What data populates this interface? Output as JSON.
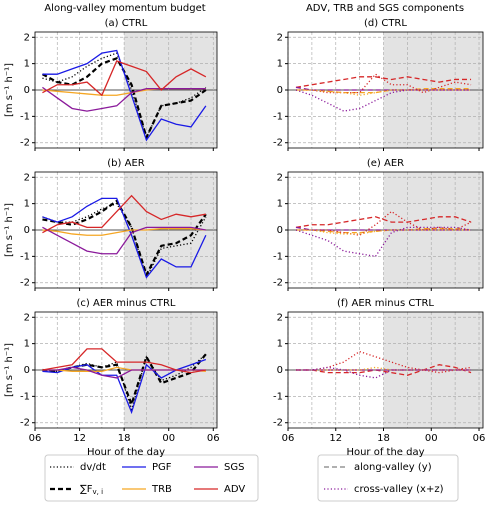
{
  "headers": [
    "Along-valley momentum budget",
    "ADV, TRB and SGS components"
  ],
  "legend_right": [
    {
      "name": "along-valley (y)",
      "color": "#808080",
      "style": "dashed"
    },
    {
      "name": "cross-valley (x+z)",
      "color": "#8b1a9b",
      "style": "dotted"
    }
  ],
  "chart_data": [
    {
      "type": "line",
      "title": "(a) CTRL",
      "ylabel": "[m s⁻¹ h⁻¹]",
      "x": [
        7,
        9,
        11,
        13,
        15,
        17,
        19,
        21,
        23,
        25,
        27,
        29
      ],
      "xlim": [
        6,
        30.5
      ],
      "ylim": [
        -2.2,
        2.2
      ],
      "xticks": [
        6,
        12,
        18,
        24,
        30
      ],
      "minor_xticks": [
        9,
        15,
        21,
        27
      ],
      "yticks": [
        -2,
        -1,
        0,
        1,
        2
      ],
      "grid": true,
      "shade": [
        18,
        30.5
      ],
      "series": [
        {
          "name": "dv/dt",
          "color": "#000000",
          "style": "dotted",
          "values": [
            0.45,
            0.3,
            0.5,
            0.9,
            1.2,
            1.4,
            0.0,
            -1.8,
            -0.6,
            -0.5,
            -0.3,
            0.1
          ]
        },
        {
          "name": "∑F",
          "subscript": "v, i",
          "color": "#000000",
          "style": "dashed",
          "linewidth": 2.2,
          "values": [
            0.6,
            0.3,
            0.2,
            0.5,
            1.0,
            1.2,
            0.2,
            -1.8,
            -0.6,
            -0.5,
            -0.4,
            0.0
          ]
        },
        {
          "name": "PGF",
          "color": "#1a1ae6",
          "style": "solid",
          "values": [
            0.6,
            0.6,
            0.8,
            1.0,
            1.4,
            1.5,
            -0.2,
            -1.9,
            -1.1,
            -1.3,
            -1.4,
            -0.6
          ]
        },
        {
          "name": "TRB",
          "color": "#f5a623",
          "style": "solid",
          "values": [
            0.0,
            -0.05,
            -0.1,
            -0.15,
            -0.2,
            -0.2,
            -0.1,
            0,
            0.05,
            0.05,
            0.05,
            0.05
          ]
        },
        {
          "name": "SGS",
          "color": "#8b1a9b",
          "style": "solid",
          "values": [
            0.1,
            -0.3,
            -0.7,
            -0.8,
            -0.7,
            -0.6,
            -0.1,
            0.05,
            0.05,
            0.05,
            0.05,
            0.05
          ]
        },
        {
          "name": "ADV",
          "color": "#d62728",
          "style": "solid",
          "values": [
            -0.1,
            0.2,
            0.2,
            0.3,
            -0.2,
            1.1,
            0.9,
            0.7,
            0.0,
            0.5,
            0.8,
            0.5
          ]
        }
      ]
    },
    {
      "type": "line",
      "title": "(d) CTRL",
      "x": [
        7,
        9,
        11,
        13,
        15,
        17,
        19,
        21,
        23,
        25,
        27,
        29
      ],
      "xlim": [
        6,
        30.5
      ],
      "ylim": [
        -2.2,
        2.2
      ],
      "xticks": [
        6,
        12,
        18,
        24,
        30
      ],
      "minor_xticks": [
        9,
        15,
        21,
        27
      ],
      "yticks": [
        -2,
        -1,
        0,
        1,
        2
      ],
      "grid": true,
      "shade": [
        18,
        30.5
      ],
      "series": [
        {
          "color": "#d62728",
          "style": "dashed",
          "values": [
            0.1,
            0.2,
            0.3,
            0.4,
            0.5,
            0.5,
            0.4,
            0.5,
            0.4,
            0.3,
            0.4,
            0.4
          ]
        },
        {
          "color": "#f5a623",
          "style": "dashed",
          "values": [
            0,
            0,
            -0.05,
            -0.1,
            -0.1,
            -0.1,
            0,
            0,
            0.05,
            0.05,
            0.05,
            0.05
          ]
        },
        {
          "color": "#8b1a9b",
          "style": "dashed",
          "values": [
            0.1,
            0,
            0,
            0,
            0,
            0,
            0,
            0,
            0,
            0,
            0,
            0
          ]
        },
        {
          "color": "#d62728",
          "style": "dotted",
          "values": [
            0,
            0,
            -0.1,
            -0.1,
            -0.1,
            0.6,
            0.2,
            0.2,
            -0.1,
            0.1,
            0.3,
            0.2
          ]
        },
        {
          "color": "#f5a623",
          "style": "dotted",
          "values": [
            0,
            0,
            -0.05,
            -0.1,
            -0.2,
            -0.1,
            0,
            0,
            0,
            0,
            0,
            0
          ]
        },
        {
          "color": "#8b1a9b",
          "style": "dotted",
          "values": [
            0,
            -0.2,
            -0.5,
            -0.8,
            -0.7,
            -0.4,
            -0.1,
            0,
            0,
            0,
            0,
            0
          ]
        }
      ]
    },
    {
      "type": "line",
      "title": "(b) AER",
      "ylabel": "[m s⁻¹ h⁻¹]",
      "x": [
        7,
        9,
        11,
        13,
        15,
        17,
        19,
        21,
        23,
        25,
        27,
        29
      ],
      "xlim": [
        6,
        30.5
      ],
      "ylim": [
        -2.2,
        2.2
      ],
      "xticks": [
        6,
        12,
        18,
        24,
        30
      ],
      "minor_xticks": [
        9,
        15,
        21,
        27
      ],
      "yticks": [
        -2,
        -1,
        0,
        1,
        2
      ],
      "grid": true,
      "shade": [
        18,
        30.5
      ],
      "series": [
        {
          "color": "#000000",
          "style": "dotted",
          "values": [
            0.5,
            0.3,
            0.3,
            0.5,
            0.8,
            1.0,
            0.1,
            -1.8,
            -0.7,
            -0.6,
            -0.5,
            0.5
          ]
        },
        {
          "color": "#000000",
          "style": "dashed",
          "linewidth": 2.2,
          "values": [
            0.4,
            0.3,
            0.2,
            0.4,
            0.7,
            1.1,
            0.1,
            -1.7,
            -0.6,
            -0.5,
            -0.2,
            0.6
          ]
        },
        {
          "color": "#1a1ae6",
          "style": "solid",
          "values": [
            0.5,
            0.3,
            0.5,
            0.9,
            1.2,
            1.2,
            -0.2,
            -1.8,
            -1.1,
            -1.4,
            -1.4,
            -0.2
          ]
        },
        {
          "color": "#f5a623",
          "style": "solid",
          "values": [
            0,
            -0.05,
            -0.15,
            -0.2,
            -0.2,
            -0.1,
            0,
            0,
            0.05,
            0.05,
            0.05,
            0
          ]
        },
        {
          "color": "#8b1a9b",
          "style": "solid",
          "values": [
            0.1,
            -0.2,
            -0.5,
            -0.8,
            -0.9,
            -0.9,
            -0.1,
            0.1,
            0.1,
            0.1,
            0.1,
            0
          ]
        },
        {
          "color": "#d62728",
          "style": "solid",
          "values": [
            -0.1,
            0.2,
            0.3,
            0.1,
            0.1,
            0.7,
            1.3,
            0.7,
            0.4,
            0.6,
            0.5,
            0.6
          ]
        }
      ]
    },
    {
      "type": "line",
      "title": "(e) AER",
      "x": [
        7,
        9,
        11,
        13,
        15,
        17,
        19,
        21,
        23,
        25,
        27,
        29
      ],
      "xlim": [
        6,
        30.5
      ],
      "ylim": [
        -2.2,
        2.2
      ],
      "xticks": [
        6,
        12,
        18,
        24,
        30
      ],
      "minor_xticks": [
        9,
        15,
        21,
        27
      ],
      "yticks": [
        -2,
        -1,
        0,
        1,
        2
      ],
      "grid": true,
      "shade": [
        18,
        30.5
      ],
      "series": [
        {
          "color": "#d62728",
          "style": "dashed",
          "values": [
            0.1,
            0.2,
            0.2,
            0.3,
            0.4,
            0.5,
            0.3,
            0.3,
            0.4,
            0.5,
            0.5,
            0.3
          ]
        },
        {
          "color": "#f5a623",
          "style": "dashed",
          "values": [
            0,
            0,
            -0.05,
            -0.1,
            -0.1,
            -0.05,
            0,
            0,
            0.05,
            0.05,
            0.05,
            0
          ]
        },
        {
          "color": "#8b1a9b",
          "style": "dashed",
          "values": [
            0.1,
            0,
            0,
            0,
            0,
            0,
            0,
            0,
            0,
            0,
            0,
            0
          ]
        },
        {
          "color": "#d62728",
          "style": "dotted",
          "values": [
            0,
            0,
            0,
            -0.1,
            -0.2,
            0.2,
            0.7,
            0.3,
            0,
            0.1,
            0,
            0.3
          ]
        },
        {
          "color": "#f5a623",
          "style": "dotted",
          "values": [
            0,
            0,
            -0.1,
            -0.15,
            -0.15,
            -0.05,
            0,
            0,
            0,
            0,
            0,
            0
          ]
        },
        {
          "color": "#8b1a9b",
          "style": "dotted",
          "values": [
            0,
            -0.2,
            -0.4,
            -0.8,
            -0.9,
            -1.0,
            -0.1,
            0.1,
            0.1,
            0.1,
            0.1,
            0
          ]
        }
      ]
    },
    {
      "type": "line",
      "title": "(c) AER minus CTRL",
      "ylabel": "[m s⁻¹ h⁻¹]",
      "xlabel": "Hour of the day",
      "x": [
        7,
        9,
        11,
        13,
        15,
        17,
        19,
        21,
        23,
        25,
        27,
        29
      ],
      "xlim": [
        6,
        30.5
      ],
      "ylim": [
        -2.2,
        2.2
      ],
      "xticks": [
        {
          "value": 6,
          "label": "06"
        },
        12,
        18,
        {
          "value": 24,
          "label": "00"
        },
        {
          "value": 30,
          "label": "06"
        }
      ],
      "minor_xticks": [
        9,
        15,
        21,
        27
      ],
      "yticks": [
        -2,
        -1,
        0,
        1,
        2
      ],
      "grid": true,
      "shade": [
        18,
        30.5
      ],
      "series": [
        {
          "color": "#000000",
          "style": "dotted",
          "values": [
            0,
            -0.05,
            0.1,
            0.25,
            0.1,
            0.3,
            -1.5,
            0.5,
            -0.4,
            -0.2,
            0.1,
            0.6
          ]
        },
        {
          "color": "#000000",
          "style": "dashed",
          "linewidth": 2.2,
          "values": [
            0,
            -0.05,
            0.1,
            0.2,
            0.1,
            0.2,
            -1.3,
            0.5,
            -0.5,
            -0.3,
            -0.1,
            0.6
          ]
        },
        {
          "color": "#1a1ae6",
          "style": "solid",
          "values": [
            -0.05,
            -0.1,
            0.1,
            0.2,
            -0.2,
            -0.2,
            -1.6,
            0.2,
            -0.3,
            0,
            0.2,
            0.4
          ]
        },
        {
          "color": "#f5a623",
          "style": "solid",
          "values": [
            0,
            0,
            -0.05,
            -0.05,
            -0.05,
            0.1,
            0,
            0,
            0,
            0,
            0,
            -0.05
          ]
        },
        {
          "color": "#8b1a9b",
          "style": "solid",
          "values": [
            0,
            0,
            0.1,
            0,
            -0.2,
            -0.3,
            0,
            0,
            0,
            0,
            0,
            0
          ]
        },
        {
          "color": "#d62728",
          "style": "solid",
          "values": [
            0,
            0.1,
            0.2,
            0.8,
            0.8,
            0.3,
            0.3,
            0.3,
            0.2,
            0,
            -0.1,
            0
          ]
        }
      ]
    },
    {
      "type": "line",
      "title": "(f) AER minus CTRL",
      "xlabel": "Hour of the day",
      "x": [
        7,
        9,
        11,
        13,
        15,
        17,
        19,
        21,
        23,
        25,
        27,
        29
      ],
      "xlim": [
        6,
        30.5
      ],
      "ylim": [
        -2.2,
        2.2
      ],
      "xticks": [
        {
          "value": 6,
          "label": "06"
        },
        12,
        18,
        {
          "value": 24,
          "label": "00"
        },
        {
          "value": 30,
          "label": "06"
        }
      ],
      "minor_xticks": [
        9,
        15,
        21,
        27
      ],
      "yticks": [
        -2,
        -1,
        0,
        1,
        2
      ],
      "grid": true,
      "shade": [
        18,
        30.5
      ],
      "series": [
        {
          "color": "#d62728",
          "style": "dashed",
          "values": [
            0,
            0,
            -0.1,
            -0.1,
            -0.1,
            0,
            -0.1,
            -0.2,
            0,
            0.2,
            0.1,
            -0.1
          ]
        },
        {
          "color": "#f5a623",
          "style": "dashed",
          "values": [
            0,
            0,
            0,
            0,
            0,
            0,
            0,
            0,
            0,
            0,
            0,
            0
          ]
        },
        {
          "color": "#8b1a9b",
          "style": "dashed",
          "values": [
            0,
            0,
            0,
            0,
            0,
            0,
            0,
            0,
            0,
            0,
            0,
            0
          ]
        },
        {
          "color": "#d62728",
          "style": "dotted",
          "values": [
            0,
            0,
            0.1,
            0.3,
            0.7,
            0.5,
            0.3,
            0.1,
            0,
            -0.1,
            0,
            0.1
          ]
        },
        {
          "color": "#f5a623",
          "style": "dotted",
          "values": [
            0,
            0,
            0,
            0,
            0,
            0.1,
            0,
            0,
            0,
            0,
            0,
            0
          ]
        },
        {
          "color": "#8b1a9b",
          "style": "dotted",
          "values": [
            0,
            0,
            0.1,
            0,
            -0.2,
            -0.3,
            0,
            0,
            0,
            0,
            0,
            0
          ]
        }
      ]
    }
  ]
}
